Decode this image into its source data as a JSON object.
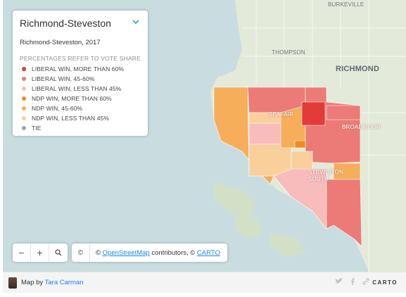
{
  "map": {
    "place_labels": {
      "burkeville": "BURKEVILLE",
      "thompson": "THOMPSON",
      "richmond": "RICHMOND",
      "seafair": "SEAFAIR",
      "broadmoor": "BROADMOOR",
      "steveston_south": "STEVESTON\nSOUTH"
    },
    "colors": {
      "water": "#c9dde1",
      "land": "#e3ead9",
      "liberal_high": "#e33a3a",
      "liberal_mid": "#ec7b77",
      "liberal_low": "#f8bcbc",
      "ndp_high": "#f08c1a",
      "ndp_mid": "#f6ae5a",
      "ndp_low": "#f9cf9c",
      "tie": "#a3a3a3"
    }
  },
  "legend": {
    "title": "Richmond-Steveston",
    "subtitle": "Richmond-Steveston, 2017",
    "note": "PERCENTAGES REFER TO VOTE SHARE",
    "items": [
      {
        "label": "LIBERAL WIN, MORE THAN 60%",
        "color": "#e33a3a"
      },
      {
        "label": "LIBERAL WIN, 45-60%",
        "color": "#ec7b77"
      },
      {
        "label": "LIBERAL WIN, LESS THAN 45%",
        "color": "#f8bcbc"
      },
      {
        "label": "NDP WIN, MORE THAN 60%",
        "color": "#f08c1a"
      },
      {
        "label": "NDP WIN, 45-60%",
        "color": "#f6ae5a"
      },
      {
        "label": "NDP WIN, LESS THAN 45%",
        "color": "#f9cf9c"
      },
      {
        "label": "TIE",
        "color": "#a3a3a3"
      }
    ]
  },
  "controls": {
    "zoom_out": "−",
    "zoom_in": "+",
    "search_icon": "search-icon",
    "info_icon": "©"
  },
  "attribution": {
    "prefix": "© ",
    "osm_link": "OpenStreetMap",
    "middle": " contributors, © ",
    "carto_link": "CARTO"
  },
  "footer": {
    "prefix": "Map by ",
    "author": "Tara Carman",
    "brand": "CARTO"
  }
}
